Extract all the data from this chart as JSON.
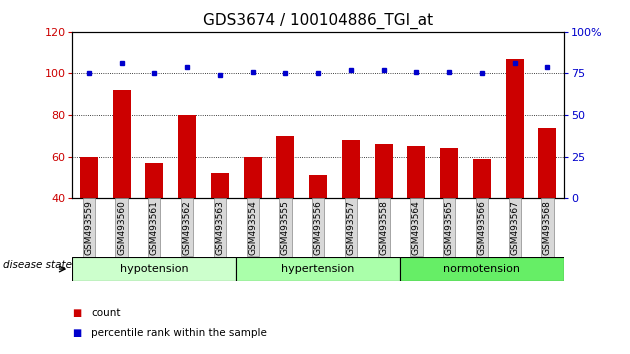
{
  "title": "GDS3674 / 100104886_TGI_at",
  "categories": [
    "GSM493559",
    "GSM493560",
    "GSM493561",
    "GSM493562",
    "GSM493563",
    "GSM493554",
    "GSM493555",
    "GSM493556",
    "GSM493557",
    "GSM493558",
    "GSM493564",
    "GSM493565",
    "GSM493566",
    "GSM493567",
    "GSM493568"
  ],
  "count_values": [
    60,
    92,
    57,
    80,
    52,
    60,
    70,
    51,
    68,
    66,
    65,
    64,
    59,
    107,
    74
  ],
  "percentile_values": [
    75,
    81,
    75,
    79,
    74,
    76,
    75,
    75,
    77,
    77,
    76,
    76,
    75,
    81,
    79
  ],
  "bar_color": "#cc0000",
  "dot_color": "#0000cc",
  "ylim_left": [
    40,
    120
  ],
  "ylim_right": [
    0,
    100
  ],
  "yticks_left": [
    40,
    60,
    80,
    100,
    120
  ],
  "yticks_right": [
    0,
    25,
    50,
    75,
    100
  ],
  "ytick_labels_right": [
    "0",
    "25",
    "50",
    "75",
    "100%"
  ],
  "groups": [
    {
      "label": "hypotension",
      "start": 0,
      "end": 5,
      "color": "#ccffcc"
    },
    {
      "label": "hypertension",
      "start": 5,
      "end": 10,
      "color": "#aaffaa"
    },
    {
      "label": "normotension",
      "start": 10,
      "end": 15,
      "color": "#66ee66"
    }
  ],
  "disease_state_label": "disease state",
  "legend_count_label": "count",
  "legend_percentile_label": "percentile rank within the sample",
  "grid_color": "black",
  "tick_label_bg": "#d8d8d8",
  "title_fontsize": 11,
  "axis_fontsize": 8,
  "label_fontsize": 8
}
